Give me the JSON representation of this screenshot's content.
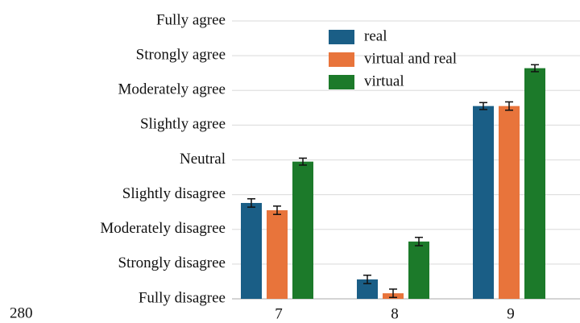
{
  "chart_data": {
    "type": "bar",
    "categories": [
      "7",
      "8",
      "9"
    ],
    "series": [
      {
        "name": "real",
        "color": "#1a5e86",
        "values": [
          3.76,
          1.56,
          6.55
        ],
        "errors": [
          0.12,
          0.12,
          0.1
        ]
      },
      {
        "name": "virtual and real",
        "color": "#e8743b",
        "values": [
          3.55,
          1.16,
          6.55
        ],
        "errors": [
          0.12,
          0.12,
          0.12
        ]
      },
      {
        "name": "virtual",
        "color": "#1c7a2a",
        "values": [
          4.95,
          2.65,
          7.64
        ],
        "errors": [
          0.1,
          0.12,
          0.1
        ]
      }
    ],
    "ylim": [
      1,
      9
    ],
    "yticks": [
      {
        "value": 1,
        "label": "Fully disagree"
      },
      {
        "value": 2,
        "label": "Strongly disagree"
      },
      {
        "value": 3,
        "label": "Moderately disagree"
      },
      {
        "value": 4,
        "label": "Slightly disagree"
      },
      {
        "value": 5,
        "label": "Neutral"
      },
      {
        "value": 6,
        "label": "Slightly agree"
      },
      {
        "value": 7,
        "label": "Moderately agree"
      },
      {
        "value": 8,
        "label": "Strongly agree"
      },
      {
        "value": 9,
        "label": "Fully agree"
      }
    ],
    "grid": true,
    "legend": "top"
  },
  "page_number": "280"
}
